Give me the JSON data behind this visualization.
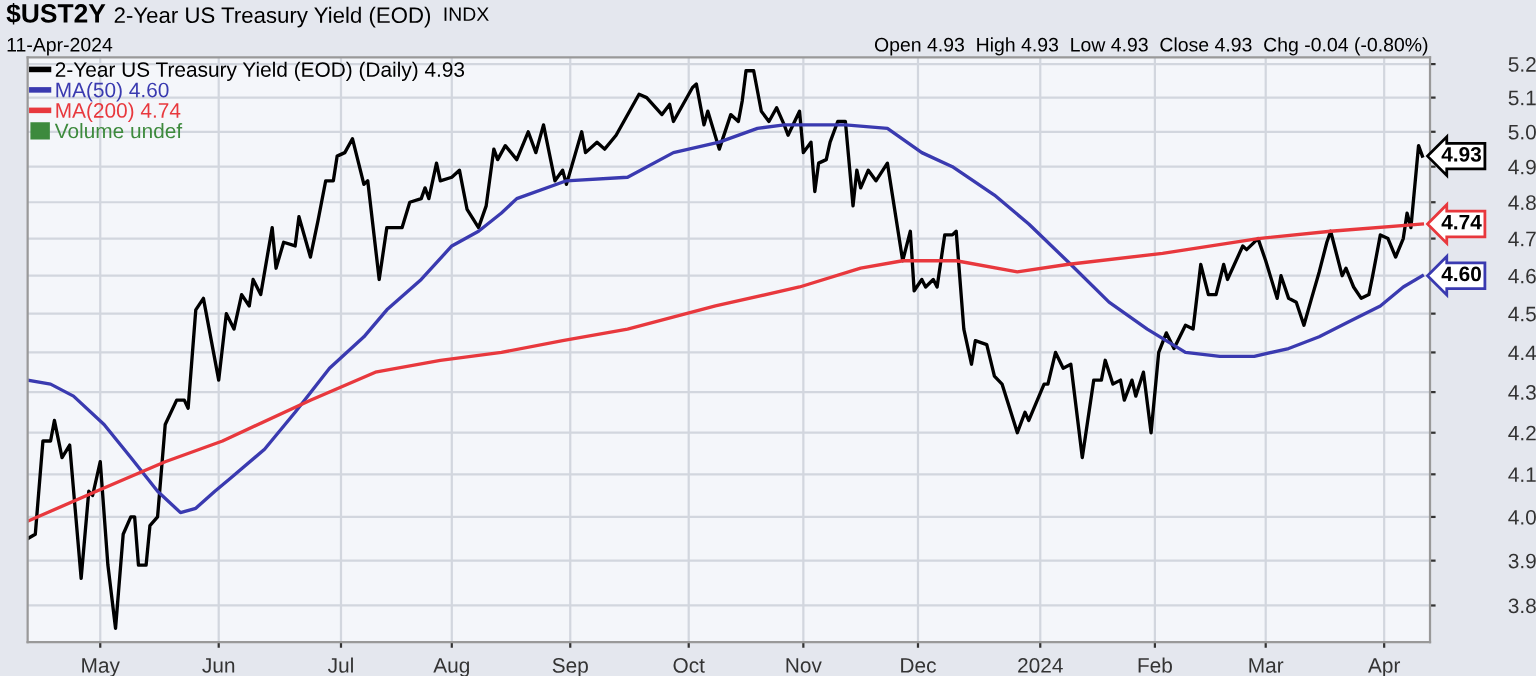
{
  "chart_data": {
    "type": "line",
    "title": "$UST2Y",
    "subtitle": "2-Year US Treasury Yield (EOD)",
    "annotations": [
      "INDX",
      "11-Apr-2024",
      "Open 4.93  High 4.93  Low 4.93  Close 4.93  Chg -0.04 (-0.80%)",
      "Volume undef",
      {
        "text": "4.93",
        "x": "2024-04-11",
        "y": 4.93
      },
      {
        "text": "4.60",
        "x": "2024-04-11",
        "y": 4.6
      },
      {
        "text": "4.74",
        "x": "2024-04-11",
        "y": 4.74
      }
    ],
    "xlim": [
      "2023-04-12",
      "2024-04-13"
    ],
    "xticks": [
      {
        "value": "2023-05-01",
        "label": "May"
      },
      {
        "value": "2023-06-01",
        "label": "Jun"
      },
      {
        "value": "2023-07-03",
        "label": "Jul"
      },
      {
        "value": "2023-08-01",
        "label": "Aug"
      },
      {
        "value": "2023-09-01",
        "label": "Sep"
      },
      {
        "value": "2023-10-02",
        "label": "Oct"
      },
      {
        "value": "2023-11-01",
        "label": "Nov"
      },
      {
        "value": "2023-12-01",
        "label": "Dec"
      },
      {
        "value": "2024-01-02",
        "label": "2024"
      },
      {
        "value": "2024-02-01",
        "label": "Feb"
      },
      {
        "value": "2024-03-01",
        "label": "Mar"
      },
      {
        "value": "2024-04-01",
        "label": "Apr"
      }
    ],
    "ylim": [
      3.72,
      5.22
    ],
    "yticks": [
      3.8,
      3.9,
      {
        "value": 4,
        "label": "4.0"
      },
      4.1,
      4.2,
      4.3,
      4.4,
      4.5,
      4.6,
      4.7,
      4.8,
      4.9,
      {
        "value": 5,
        "label": "5.0"
      },
      5.1,
      5.2
    ],
    "log": "y",
    "grid": true,
    "legend": "top left",
    "marker": "none",
    "line_style": "solid",
    "series": [
      {
        "name": "2-Year US Treasury Yield (EOD) (Daily) 4.93",
        "color": "#000000",
        "x": [
          "2023-04-12",
          "2023-04-14",
          "2023-04-16",
          "2023-04-18",
          "2023-04-19",
          "2023-04-21",
          "2023-04-23",
          "2023-04-26",
          "2023-04-28",
          "2023-04-29",
          "2023-05-01",
          "2023-05-03",
          "2023-05-05",
          "2023-05-07",
          "2023-05-09",
          "2023-05-10",
          "2023-05-11",
          "2023-05-13",
          "2023-05-14",
          "2023-05-16",
          "2023-05-18",
          "2023-05-21",
          "2023-05-23",
          "2023-05-24",
          "2023-05-26",
          "2023-05-28",
          "2023-06-01",
          "2023-06-03",
          "2023-06-05",
          "2023-06-07",
          "2023-06-09",
          "2023-06-10",
          "2023-06-12",
          "2023-06-15",
          "2023-06-16",
          "2023-06-18",
          "2023-06-21",
          "2023-06-22",
          "2023-06-25",
          "2023-06-27",
          "2023-06-29",
          "2023-07-01",
          "2023-07-02",
          "2023-07-04",
          "2023-07-06",
          "2023-07-09",
          "2023-07-10",
          "2023-07-13",
          "2023-07-15",
          "2023-07-19",
          "2023-07-21",
          "2023-07-24",
          "2023-07-25",
          "2023-07-26",
          "2023-07-28",
          "2023-07-29",
          "2023-08-01",
          "2023-08-03",
          "2023-08-05",
          "2023-08-08",
          "2023-08-10",
          "2023-08-12",
          "2023-08-13",
          "2023-08-15",
          "2023-08-18",
          "2023-08-21",
          "2023-08-23",
          "2023-08-25",
          "2023-08-28",
          "2023-08-30",
          "2023-08-31",
          "2023-09-04",
          "2023-09-05",
          "2023-09-08",
          "2023-09-10",
          "2023-09-13",
          "2023-09-19",
          "2023-09-21",
          "2023-09-25",
          "2023-09-27",
          "2023-09-28",
          "2023-10-03",
          "2023-10-04",
          "2023-10-06",
          "2023-10-07",
          "2023-10-10",
          "2023-10-13",
          "2023-10-15",
          "2023-10-16",
          "2023-10-17",
          "2023-10-19",
          "2023-10-21",
          "2023-10-23",
          "2023-10-25",
          "2023-10-27",
          "2023-10-28",
          "2023-10-31",
          "2023-11-01",
          "2023-11-03",
          "2023-11-04",
          "2023-11-05",
          "2023-11-07",
          "2023-11-08",
          "2023-11-10",
          "2023-11-12",
          "2023-11-14",
          "2023-11-15",
          "2023-11-16",
          "2023-11-18",
          "2023-11-20",
          "2023-11-23",
          "2023-11-27",
          "2023-11-29",
          "2023-11-30",
          "2023-12-02",
          "2023-12-03",
          "2023-12-05",
          "2023-12-06",
          "2023-12-08",
          "2023-12-10",
          "2023-12-11",
          "2023-12-13",
          "2023-12-15",
          "2023-12-16",
          "2023-12-19",
          "2023-12-21",
          "2023-12-23",
          "2023-12-27",
          "2023-12-29",
          "2023-12-30",
          "2024-01-03",
          "2024-01-04",
          "2024-01-06",
          "2024-01-08",
          "2024-01-10",
          "2024-01-13",
          "2024-01-16",
          "2024-01-18",
          "2024-01-19",
          "2024-01-21",
          "2024-01-23",
          "2024-01-24",
          "2024-01-26",
          "2024-01-27",
          "2024-01-29",
          "2024-01-31",
          "2024-02-02",
          "2024-02-04",
          "2024-02-06",
          "2024-02-09",
          "2024-02-11",
          "2024-02-13",
          "2024-02-15",
          "2024-02-17",
          "2024-02-19",
          "2024-02-20",
          "2024-02-24",
          "2024-02-25",
          "2024-02-28",
          "2024-03-01",
          "2024-03-04",
          "2024-03-05",
          "2024-03-07",
          "2024-03-09",
          "2024-03-11",
          "2024-03-13",
          "2024-03-15",
          "2024-03-17",
          "2024-03-18",
          "2024-03-21",
          "2024-03-22",
          "2024-03-24",
          "2024-03-26",
          "2024-03-28",
          "2024-03-29",
          "2024-03-31",
          "2024-04-02",
          "2024-04-04",
          "2024-04-06",
          "2024-04-07",
          "2024-04-08",
          "2024-04-10",
          "2024-04-11"
        ],
        "values": [
          3.95,
          3.96,
          4.18,
          4.18,
          4.23,
          4.14,
          4.17,
          3.86,
          4.06,
          4.05,
          4.13,
          3.89,
          3.75,
          3.96,
          4.0,
          4.0,
          3.89,
          3.89,
          3.98,
          4.0,
          4.22,
          4.28,
          4.28,
          4.26,
          4.51,
          4.54,
          4.33,
          4.5,
          4.46,
          4.55,
          4.52,
          4.59,
          4.55,
          4.73,
          4.62,
          4.69,
          4.68,
          4.76,
          4.65,
          4.75,
          4.86,
          4.86,
          4.93,
          4.94,
          4.98,
          4.85,
          4.86,
          4.59,
          4.73,
          4.73,
          4.8,
          4.81,
          4.84,
          4.81,
          4.91,
          4.86,
          4.87,
          4.89,
          4.78,
          4.73,
          4.79,
          4.95,
          4.92,
          4.96,
          4.92,
          5.0,
          4.94,
          5.02,
          4.86,
          4.89,
          4.85,
          5.0,
          4.94,
          4.97,
          4.95,
          4.99,
          5.11,
          5.1,
          5.05,
          5.08,
          5.03,
          5.13,
          5.14,
          5.02,
          5.06,
          4.95,
          5.05,
          5.03,
          5.09,
          5.18,
          5.18,
          5.06,
          5.03,
          5.07,
          5.02,
          4.99,
          5.06,
          4.94,
          4.97,
          4.83,
          4.91,
          4.92,
          4.97,
          5.03,
          5.03,
          4.79,
          4.89,
          4.84,
          4.89,
          4.86,
          4.91,
          4.64,
          4.72,
          4.56,
          4.59,
          4.57,
          4.59,
          4.57,
          4.71,
          4.71,
          4.72,
          4.46,
          4.37,
          4.43,
          4.42,
          4.34,
          4.32,
          4.2,
          4.25,
          4.23,
          4.32,
          4.32,
          4.4,
          4.36,
          4.37,
          4.14,
          4.33,
          4.33,
          4.38,
          4.32,
          4.33,
          4.28,
          4.33,
          4.29,
          4.35,
          4.2,
          4.4,
          4.45,
          4.41,
          4.47,
          4.46,
          4.63,
          4.55,
          4.55,
          4.63,
          4.59,
          4.68,
          4.67,
          4.7,
          4.64,
          4.54,
          4.6,
          4.54,
          4.53,
          4.47,
          4.54,
          4.61,
          4.69,
          4.72,
          4.6,
          4.62,
          4.57,
          4.54,
          4.55,
          4.6,
          4.71,
          4.7,
          4.65,
          4.7,
          4.77,
          4.73,
          4.96,
          4.93
        ]
      },
      {
        "name": "MA(50) 4.60",
        "color": "#3a3ab0",
        "x": [
          "2023-04-12",
          "2023-04-18",
          "2023-04-24",
          "2023-05-02",
          "2023-05-09",
          "2023-05-16",
          "2023-05-22",
          "2023-05-26",
          "2023-05-31",
          "2023-06-04",
          "2023-06-13",
          "2023-06-21",
          "2023-06-30",
          "2023-07-09",
          "2023-07-15",
          "2023-07-24",
          "2023-08-01",
          "2023-08-08",
          "2023-08-14",
          "2023-08-18",
          "2023-08-31",
          "2023-09-16",
          "2023-09-28",
          "2023-10-10",
          "2023-10-20",
          "2023-10-27",
          "2023-11-12",
          "2023-11-23",
          "2023-12-02",
          "2023-12-10",
          "2023-12-21",
          "2023-12-30",
          "2024-01-10",
          "2024-01-20",
          "2024-01-30",
          "2024-02-09",
          "2024-02-18",
          "2024-02-27",
          "2024-03-07",
          "2024-03-15",
          "2024-03-23",
          "2024-03-31",
          "2024-04-06",
          "2024-04-11"
        ],
        "values": [
          4.33,
          4.32,
          4.29,
          4.22,
          4.14,
          4.06,
          4.01,
          4.02,
          4.06,
          4.09,
          4.16,
          4.25,
          4.36,
          4.44,
          4.51,
          4.59,
          4.68,
          4.72,
          4.77,
          4.81,
          4.86,
          4.87,
          4.94,
          4.97,
          5.01,
          5.02,
          5.02,
          5.01,
          4.94,
          4.9,
          4.82,
          4.74,
          4.63,
          4.53,
          4.46,
          4.4,
          4.39,
          4.39,
          4.41,
          4.44,
          4.48,
          4.52,
          4.57,
          4.6
        ]
      },
      {
        "name": "MA(200) 4.74",
        "color": "#e8383d",
        "x": [
          "2023-04-12",
          "2023-04-30",
          "2023-05-18",
          "2023-06-02",
          "2023-06-25",
          "2023-07-12",
          "2023-07-29",
          "2023-08-14",
          "2023-08-30",
          "2023-09-16",
          "2023-10-09",
          "2023-10-31",
          "2023-11-16",
          "2023-11-27",
          "2023-12-11",
          "2023-12-27",
          "2024-01-09",
          "2024-02-03",
          "2024-02-28",
          "2024-03-18",
          "2024-04-11"
        ],
        "values": [
          3.99,
          4.06,
          4.13,
          4.18,
          4.28,
          4.35,
          4.38,
          4.4,
          4.43,
          4.46,
          4.52,
          4.57,
          4.62,
          4.64,
          4.64,
          4.61,
          4.63,
          4.66,
          4.7,
          4.72,
          4.74
        ]
      }
    ]
  }
}
